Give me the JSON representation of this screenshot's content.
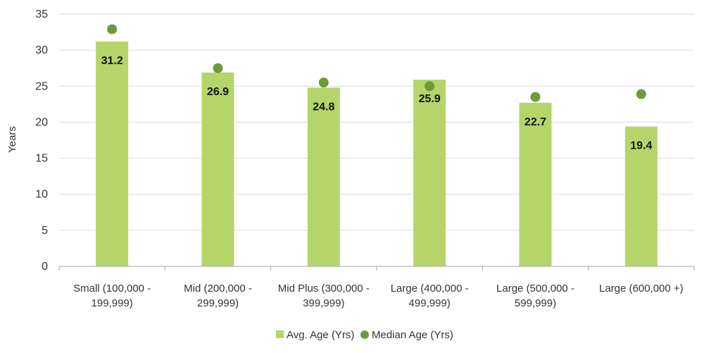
{
  "chart_data": {
    "type": "bar",
    "title": "",
    "xlabel": "",
    "ylabel": "Years",
    "ylim": [
      0,
      35
    ],
    "yticks": [
      0,
      5,
      10,
      15,
      20,
      25,
      30,
      35
    ],
    "grid": true,
    "legend_position": "bottom",
    "categories": [
      [
        "Small (100,000 -",
        "199,999)"
      ],
      [
        "Mid (200,000 -",
        "299,999)"
      ],
      [
        "Mid Plus (300,000 -",
        "399,999)"
      ],
      [
        "Large (400,000 -",
        "499,999)"
      ],
      [
        "Large (500,000 -",
        "599,999)"
      ],
      [
        "Large (600,000 +)"
      ]
    ],
    "series": [
      {
        "name": "Avg. Age (Yrs)",
        "type": "bar",
        "color": "#b5d56a",
        "values": [
          31.2,
          26.9,
          24.8,
          25.9,
          22.7,
          19.4
        ],
        "labels": [
          "31.2",
          "26.9",
          "24.8",
          "25.9",
          "22.7",
          "19.4"
        ]
      },
      {
        "name": "Median Age (Yrs)",
        "type": "scatter",
        "color": "#6e9a3a",
        "values": [
          32.9,
          27.5,
          25.5,
          25.0,
          23.5,
          23.9
        ]
      }
    ]
  }
}
